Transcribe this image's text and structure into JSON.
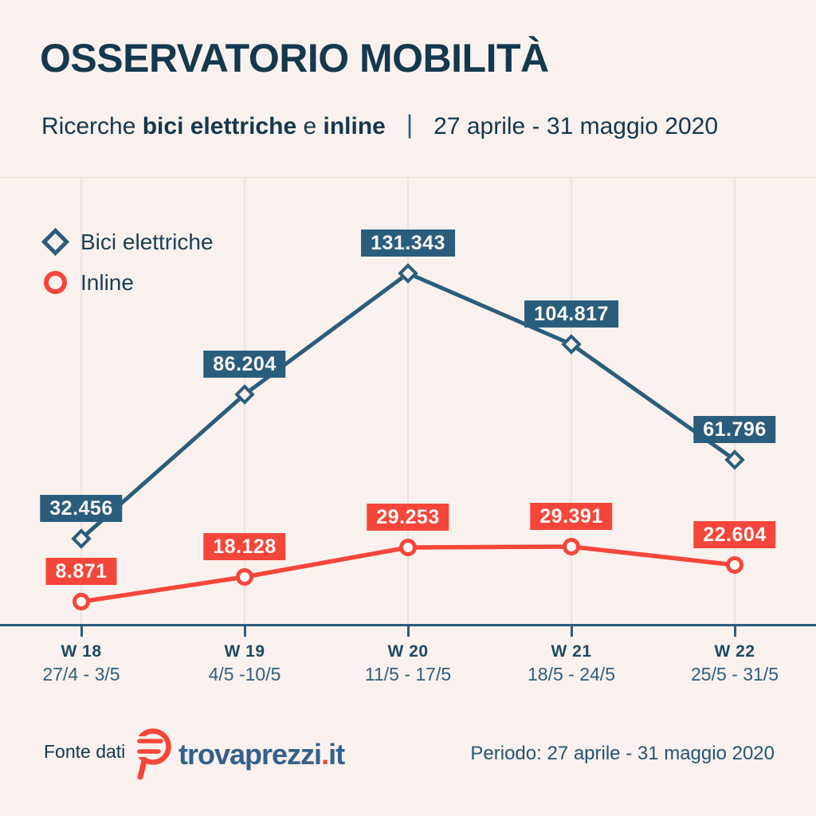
{
  "header": {
    "title": "OSSERVATORIO MOBILITÀ",
    "subtitle": {
      "prefix": "Ricerche ",
      "bold1": "bici elettriche",
      "connector": " e ",
      "bold2": "inline",
      "separator": "|",
      "period": "27 aprile - 31 maggio 2020"
    }
  },
  "chart_data": {
    "type": "line",
    "title": "Ricerche bici elettriche e inline | 27 aprile - 31 maggio 2020",
    "categories": [
      {
        "week": "W 18",
        "range": "27/4 - 3/5"
      },
      {
        "week": "W 19",
        "range": "4/5 -10/5"
      },
      {
        "week": "W 20",
        "range": "11/5 - 17/5"
      },
      {
        "week": "W 21",
        "range": "18/5 - 24/5"
      },
      {
        "week": "W 22",
        "range": "25/5 - 31/5"
      }
    ],
    "series": [
      {
        "name": "Bici elettriche",
        "marker": "diamond",
        "color": "#2a5d7c",
        "values": [
          32456,
          86204,
          131343,
          104817,
          61796
        ],
        "labels": [
          "32.456",
          "86.204",
          "131.343",
          "104.817",
          "61.796"
        ]
      },
      {
        "name": "Inline",
        "marker": "circle",
        "color": "#f4463a",
        "values": [
          8871,
          18128,
          29253,
          29391,
          22604
        ],
        "labels": [
          "8.871",
          "18.128",
          "29.253",
          "29.391",
          "22.604"
        ]
      }
    ],
    "ylim": [
      0,
      167000
    ],
    "grid": "vertical-only",
    "legend_position": "top-left",
    "data_labels": "boxed above points"
  },
  "footer": {
    "source_label": "Fonte dati",
    "source_logo": {
      "brand": "trovaprezzi",
      "dot": ".",
      "tld": "it"
    },
    "period": "Periodo: 27 aprile - 31 maggio 2020"
  },
  "colors": {
    "background": "#f9f1ed",
    "navy_dark": "#14384e",
    "navy_series": "#2a5d7c",
    "red_series": "#f4463a",
    "gridline": "#ece3de",
    "logo_navy": "#33608c"
  }
}
